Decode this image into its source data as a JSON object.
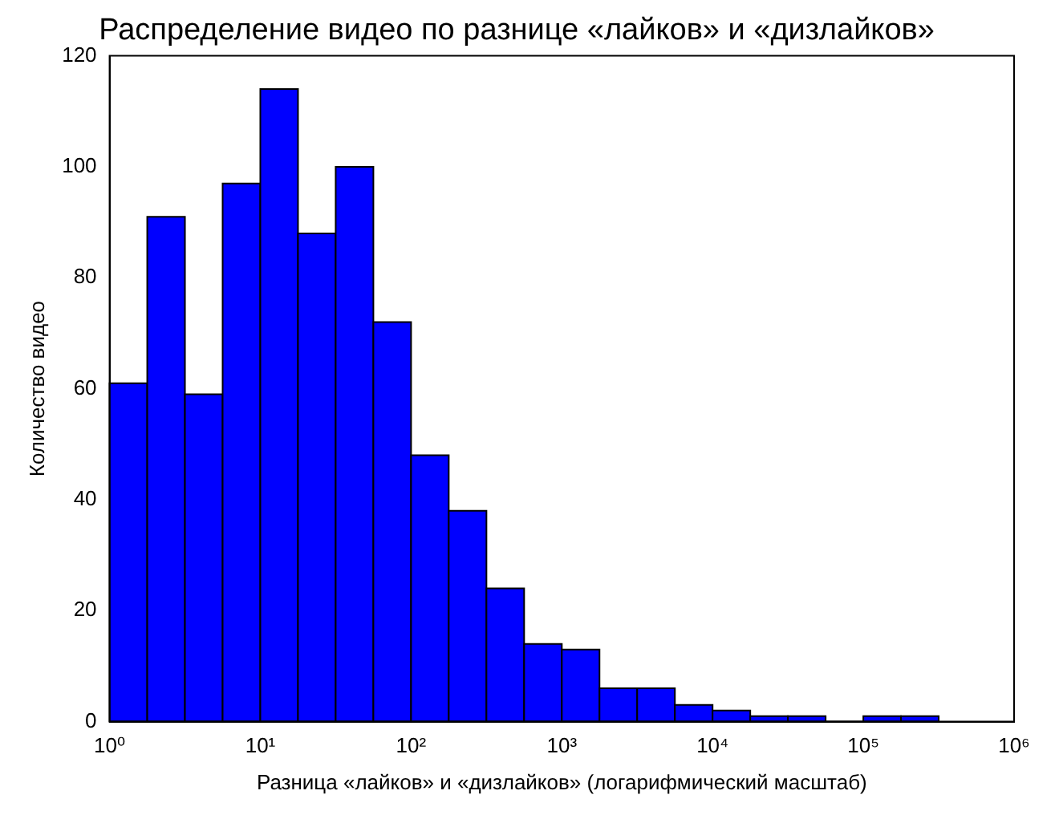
{
  "chart_data": {
    "type": "histogram",
    "title": "Распределение видео по разнице «лайков» и «дизлайков»",
    "xlabel": "Разница «лайков» и «дизлайков» (логарифмический масштаб)",
    "ylabel": "Количество видео",
    "log": "x",
    "color": "#0000ff",
    "bins": [
      1,
      1.778,
      3.162,
      5.623,
      10,
      17.78,
      31.62,
      56.23,
      100,
      177.8,
      316.2,
      562.3,
      1000,
      1778,
      3162,
      5623,
      10000,
      17780,
      31620,
      56230,
      100000,
      177800,
      316200
    ],
    "values": [
      61,
      91,
      59,
      97,
      114,
      88,
      100,
      72,
      48,
      38,
      24,
      14,
      13,
      6,
      6,
      3,
      2,
      1,
      1,
      0,
      1,
      1
    ],
    "xlim": [
      1,
      1000000
    ],
    "xticks": [
      {
        "value": 1,
        "label": "10⁰"
      },
      {
        "value": 10,
        "label": "10¹"
      },
      {
        "value": 100,
        "label": "10²"
      },
      {
        "value": 1000,
        "label": "10³"
      },
      {
        "value": 10000,
        "label": "10⁴"
      },
      {
        "value": 100000,
        "label": "10⁵"
      },
      {
        "value": 1000000,
        "label": "10⁶"
      }
    ],
    "ylim": [
      0,
      120
    ],
    "yticks": [
      0,
      20,
      40,
      60,
      80,
      100,
      120
    ],
    "grid": false,
    "legend": false
  }
}
